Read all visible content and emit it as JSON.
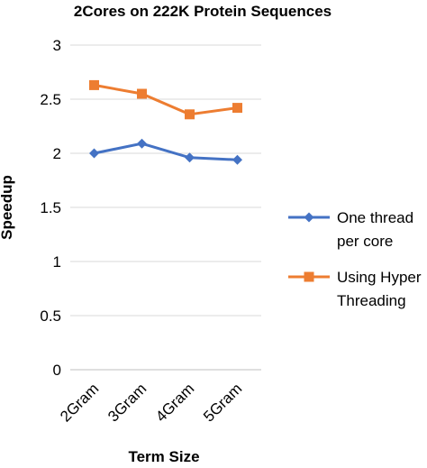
{
  "chart_data": {
    "type": "line",
    "title": "2Cores on 222K Protein Sequences",
    "xlabel": "Term Size",
    "ylabel": "Speedup",
    "categories": [
      "2Gram",
      "3Gram",
      "4Gram",
      "5Gram"
    ],
    "ylim": [
      0,
      3
    ],
    "yticks": [
      "0",
      "0.5",
      "1",
      "1.5",
      "2",
      "2.5",
      "3"
    ],
    "grid": true,
    "legend_position": "right",
    "series": [
      {
        "name_lines": [
          "One thread",
          "per core"
        ],
        "values": [
          2.0,
          2.09,
          1.96,
          1.94
        ],
        "color": "#4472C4",
        "marker": "diamond"
      },
      {
        "name_lines": [
          "Using Hyper",
          "Threading"
        ],
        "values": [
          2.63,
          2.55,
          2.36,
          2.42
        ],
        "color": "#ED7D31",
        "marker": "square"
      }
    ]
  }
}
